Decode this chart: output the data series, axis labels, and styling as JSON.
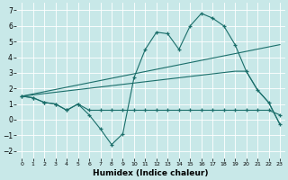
{
  "xlabel": "Humidex (Indice chaleur)",
  "bg_color": "#c8e8e8",
  "grid_color": "#ffffff",
  "line_color": "#1a6e6a",
  "ylim": [
    -2.5,
    7.5
  ],
  "xlim": [
    -0.5,
    23.5
  ],
  "yticks": [
    -2,
    -1,
    0,
    1,
    2,
    3,
    4,
    5,
    6,
    7
  ],
  "xticks": [
    0,
    1,
    2,
    3,
    4,
    5,
    6,
    7,
    8,
    9,
    10,
    11,
    12,
    13,
    14,
    15,
    16,
    17,
    18,
    19,
    20,
    21,
    22,
    23
  ],
  "series": [
    {
      "x": [
        0,
        1,
        2,
        3,
        4,
        5,
        6,
        7,
        8,
        9,
        10,
        11,
        12,
        13,
        14,
        15,
        16,
        17,
        18,
        19,
        20,
        21,
        22,
        23
      ],
      "y": [
        1.5,
        1.4,
        1.1,
        1.0,
        0.6,
        1.0,
        0.3,
        -0.6,
        -1.6,
        -0.9,
        2.7,
        4.5,
        5.6,
        5.5,
        4.5,
        6.0,
        6.8,
        6.5,
        6.0,
        4.8,
        3.1,
        1.9,
        1.1,
        -0.3
      ],
      "marker": true
    },
    {
      "x": [
        0,
        1,
        2,
        3,
        4,
        5,
        6,
        7,
        8,
        9,
        10,
        11,
        12,
        13,
        14,
        15,
        16,
        17,
        18,
        19,
        20,
        21,
        22,
        23
      ],
      "y": [
        1.5,
        1.4,
        1.1,
        1.0,
        0.6,
        1.0,
        0.6,
        0.6,
        0.6,
        0.6,
        0.6,
        0.6,
        0.6,
        0.6,
        0.6,
        0.6,
        0.6,
        0.6,
        0.6,
        0.6,
        0.6,
        0.6,
        0.6,
        0.3
      ],
      "marker": true
    },
    {
      "x": [
        0,
        23
      ],
      "y": [
        1.5,
        4.8
      ],
      "marker": false
    },
    {
      "comment": "Triangle line no markers: (0,1.5) -> (19,3.1) -> (20,3.1) -> (21,1.9) -> (22,1.1) -> (23,-0.3)",
      "x": [
        0,
        19,
        20,
        21,
        22,
        23
      ],
      "y": [
        1.5,
        3.1,
        3.1,
        1.9,
        1.1,
        -0.3
      ],
      "marker": false
    }
  ]
}
